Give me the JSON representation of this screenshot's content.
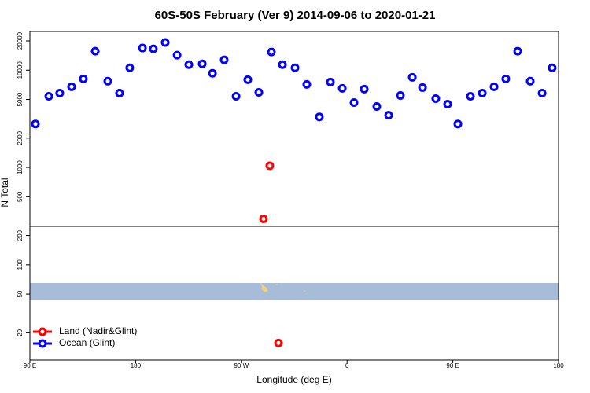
{
  "chart_data": {
    "type": "scatter",
    "title": "60S-50S February (Ver 9)   2014-09-06 to 2020-01-21",
    "x_label": "Longitude (deg E)",
    "y_label": "N Total",
    "log_y": true,
    "legend": "bottom-left",
    "xlim": [
      -270,
      180
    ],
    "ylim": [
      10.5,
      25000
    ],
    "xticks": [
      {
        "value": -270,
        "label": "90 E"
      },
      {
        "value": -180,
        "label": "180"
      },
      {
        "value": -90,
        "label": "90 W"
      },
      0,
      {
        "value": 90,
        "label": "90 E"
      },
      {
        "value": 180,
        "label": "180"
      }
    ],
    "yticks": [
      20,
      50,
      100,
      200,
      500,
      1000,
      2000,
      5000,
      10000,
      20000
    ],
    "series": [
      {
        "name": "Land (Nadir&Glint)",
        "color": "#ff0000",
        "x": [
          -65.8,
          -71.1,
          -58.4
        ],
        "values": [
          1040,
          296,
          15.7
        ]
      },
      {
        "name": "Ocean (Glint)",
        "color": "#0000ff",
        "x": [
          -265.3,
          -253.9,
          -244.6,
          -234.5,
          -224.5,
          -214.4,
          -203.7,
          -193.7,
          -185,
          -174.2,
          -164.9,
          -154.8,
          -144.7,
          -134.7,
          -123.3,
          -114.6,
          -104.6,
          -94.5,
          -84.5,
          -75.1,
          -64.4,
          -55,
          -44.3,
          -34.3,
          -23.6,
          -14.2,
          -4.1,
          5.9,
          14.6,
          25.3,
          35.4,
          45.4,
          55.5,
          64.2,
          75.5,
          85.6,
          94.3,
          105,
          115.1,
          125.1,
          135.1,
          145.2,
          155.9,
          166,
          174.6
        ],
        "values": [
          2800,
          5390,
          5810,
          6750,
          8140,
          15670,
          7700,
          5810,
          10580,
          16900,
          16580,
          19260,
          14270,
          11400,
          11620,
          9280,
          12760,
          5390,
          7990,
          5920,
          15380,
          11400,
          10580,
          7140,
          3310,
          7550,
          6500,
          4640,
          6380,
          4230,
          3440,
          5490,
          8450,
          6620,
          5100,
          4470,
          2800,
          5390,
          5810,
          6750,
          8140,
          15670,
          7700,
          5810,
          10580
        ]
      }
    ]
  }
}
